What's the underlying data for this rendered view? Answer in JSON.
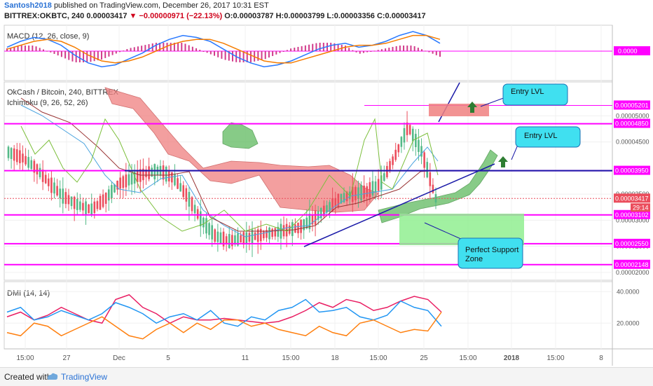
{
  "header": {
    "author": "Santosh2018",
    "published": "published on TradingView.com, December 26, 2017 10:31 EST",
    "symbol": "BITTREX:OKBTC, 240",
    "last": "0.00003417",
    "change": "−0.00000971 (−22.13%)",
    "ohlc": "O:0.00003787 H:0.00003799 L:0.00003356 C:0.00003417"
  },
  "footer": {
    "created_with": "Created with",
    "brand": "TradingView"
  },
  "colors": {
    "magenta": "#ff00ff",
    "blue": "#1a1aa8",
    "cloud_red": "#f08080",
    "cloud_green": "#6abf6a",
    "note_fill": "#40e0f0"
  },
  "chart_data": [
    {
      "type": "line",
      "title": "MACD (12, 26, close, 9)",
      "price_labels": [
        "0.0000"
      ],
      "series": [
        {
          "values": [
            0.2,
            0.5,
            0.7,
            0.6,
            0.3,
            -0.2,
            -0.6,
            -0.8,
            -0.7,
            -0.4,
            -0.1,
            0.3,
            0.6,
            0.8,
            0.7,
            0.5,
            0.1,
            -0.3,
            -0.6,
            -0.8,
            -0.7,
            -0.5,
            -0.2,
            0.1,
            0.3,
            0.4,
            0.2,
            0.3,
            0.5,
            0.8,
            1.0,
            0.8,
            0.4
          ]
        },
        {
          "values": [
            0.1,
            0.3,
            0.5,
            0.6,
            0.5,
            0.2,
            -0.2,
            -0.5,
            -0.6,
            -0.5,
            -0.3,
            0.0,
            0.3,
            0.5,
            0.6,
            0.6,
            0.4,
            0.1,
            -0.2,
            -0.5,
            -0.6,
            -0.6,
            -0.4,
            -0.2,
            0.0,
            0.2,
            0.3,
            0.3,
            0.4,
            0.6,
            0.8,
            0.8,
            0.6
          ]
        }
      ]
    },
    {
      "type": "line",
      "title": "OkCash / Bitcoin, 240, BITTREX",
      "subtitle": "Ichimoku (9, 26, 52, 26)",
      "y_ticks": [
        "0.00005000",
        "0.00004500",
        "0.00003500",
        "0.00003000",
        "0.00002500",
        "0.00002000"
      ],
      "ylim": [
        1.85e-05,
        5.65e-05
      ],
      "levels": [
        "0.00005201",
        "0.00004850",
        "0.00003950",
        "0.00003102",
        "0.00002550",
        "0.00002148"
      ],
      "last_price": "0.00003417",
      "countdown": "29:14",
      "annotations": [
        "Entry LVL",
        "Entry LVL",
        "Perfect Support Zone"
      ],
      "series": [
        {
          "values": [
            4.3e-05,
            4.2e-05,
            4e-05,
            3.7e-05,
            3.45e-05,
            3.3e-05,
            3.2e-05,
            3.4e-05,
            3.7e-05,
            3.8e-05,
            3.9e-05,
            3.95e-05,
            3.8e-05,
            3.45e-05,
            3e-05,
            2.7e-05,
            2.6e-05,
            2.65e-05,
            2.7e-05,
            2.75e-05,
            2.8e-05,
            2.85e-05,
            3e-05,
            3.2e-05,
            3.4e-05,
            3.5e-05,
            3.55e-05,
            3.7e-05,
            4.2e-05,
            4.8e-05,
            4.3e-05,
            3.42e-05
          ]
        }
      ]
    },
    {
      "type": "line",
      "title": "DMI (14, 14)",
      "y_ticks": [
        "40.0000",
        "20.0000"
      ],
      "series": [
        {
          "values": [
            24,
            27,
            22,
            25,
            30,
            26,
            22,
            20,
            35,
            38,
            30,
            26,
            20,
            24,
            22,
            22,
            23,
            22,
            21,
            20,
            21,
            24,
            28,
            33,
            30,
            35,
            33,
            28,
            30,
            34,
            37,
            35,
            27
          ]
        },
        {
          "values": [
            27,
            30,
            22,
            24,
            28,
            25,
            22,
            26,
            33,
            30,
            26,
            20,
            24,
            26,
            22,
            28,
            20,
            18,
            24,
            22,
            28,
            30,
            35,
            27,
            28,
            30,
            24,
            22,
            25,
            34,
            30,
            28,
            18
          ]
        },
        {
          "values": [
            14,
            12,
            20,
            18,
            12,
            16,
            20,
            24,
            18,
            12,
            10,
            16,
            20,
            14,
            20,
            16,
            22,
            22,
            18,
            20,
            16,
            14,
            12,
            18,
            14,
            12,
            20,
            22,
            18,
            14,
            16,
            15,
            27
          ]
        }
      ]
    }
  ],
  "x_ticks": [
    "15:00",
    "27",
    "Dec",
    "5",
    "11",
    "15:00",
    "18",
    "15:00",
    "25",
    "15:00",
    "2018",
    "15:00",
    "8"
  ]
}
